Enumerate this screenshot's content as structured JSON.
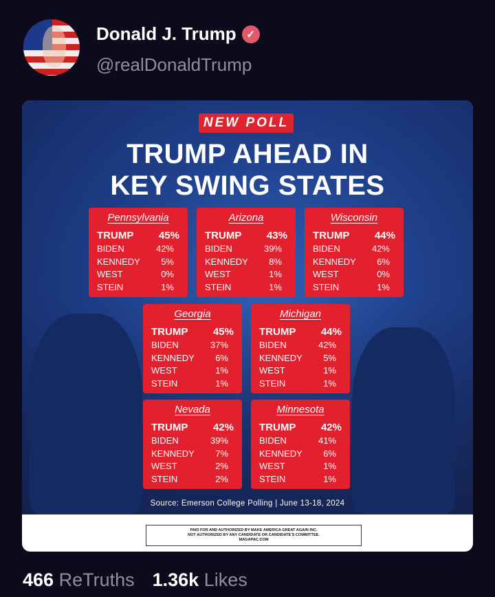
{
  "profile": {
    "name": "Donald J. Trump",
    "handle": "@realDonaldTrump"
  },
  "poster": {
    "tag": "NEW POLL",
    "title_line1": "TRUMP AHEAD IN",
    "title_line2": "KEY SWING STATES",
    "states": [
      {
        "name": "Pennsylvania",
        "rows": [
          [
            "TRUMP",
            "45%"
          ],
          [
            "BIDEN",
            "42%"
          ],
          [
            "KENNEDY",
            "5%"
          ],
          [
            "WEST",
            "0%"
          ],
          [
            "STEIN",
            "1%"
          ]
        ]
      },
      {
        "name": "Arizona",
        "rows": [
          [
            "TRUMP",
            "43%"
          ],
          [
            "BIDEN",
            "39%"
          ],
          [
            "KENNEDY",
            "8%"
          ],
          [
            "WEST",
            "1%"
          ],
          [
            "STEIN",
            "1%"
          ]
        ]
      },
      {
        "name": "Wisconsin",
        "rows": [
          [
            "TRUMP",
            "44%"
          ],
          [
            "BIDEN",
            "42%"
          ],
          [
            "KENNEDY",
            "6%"
          ],
          [
            "WEST",
            "0%"
          ],
          [
            "STEIN",
            "1%"
          ]
        ]
      },
      {
        "name": "Georgia",
        "rows": [
          [
            "TRUMP",
            "45%"
          ],
          [
            "BIDEN",
            "37%"
          ],
          [
            "KENNEDY",
            "6%"
          ],
          [
            "WEST",
            "1%"
          ],
          [
            "STEIN",
            "1%"
          ]
        ]
      },
      {
        "name": "Michigan",
        "rows": [
          [
            "TRUMP",
            "44%"
          ],
          [
            "BIDEN",
            "42%"
          ],
          [
            "KENNEDY",
            "5%"
          ],
          [
            "WEST",
            "1%"
          ],
          [
            "STEIN",
            "1%"
          ]
        ]
      },
      {
        "name": "Nevada",
        "rows": [
          [
            "TRUMP",
            "42%"
          ],
          [
            "BIDEN",
            "39%"
          ],
          [
            "KENNEDY",
            "7%"
          ],
          [
            "WEST",
            "2%"
          ],
          [
            "STEIN",
            "2%"
          ]
        ]
      },
      {
        "name": "Minnesota",
        "rows": [
          [
            "TRUMP",
            "42%"
          ],
          [
            "BIDEN",
            "41%"
          ],
          [
            "KENNEDY",
            "6%"
          ],
          [
            "WEST",
            "1%"
          ],
          [
            "STEIN",
            "1%"
          ]
        ]
      }
    ],
    "source": "Source: Emerson College Polling | June 13-18, 2024",
    "disclaimer": [
      "PAID FOR AND AUTHORIZED BY MAKE AMERICA GREAT AGAIN INC.",
      "NOT AUTHORIZED BY ANY CANDIDATE OR CANDIDATE'S COMMITTEE.",
      "MAGAPAC.COM"
    ]
  },
  "stats": {
    "retruths_count": "466",
    "retruths_label": "ReTruths",
    "likes_count": "1.36k",
    "likes_label": "Likes"
  }
}
